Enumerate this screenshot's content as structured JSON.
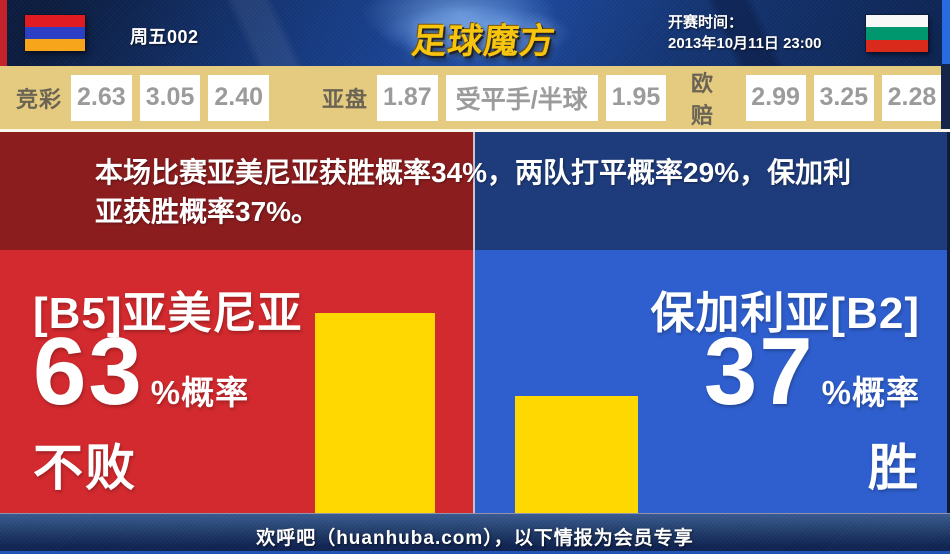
{
  "header": {
    "match_label": "周五002",
    "logo_text": "足球魔方",
    "kickoff_label": "开赛时间：",
    "kickoff_time": "2013年10月11日 23:00",
    "home_flag": "armenia-flag",
    "away_flag": "bulgaria-flag"
  },
  "odds": {
    "jingcai": {
      "label": "竞彩",
      "values": [
        "2.63",
        "3.05",
        "2.40"
      ]
    },
    "yapan": {
      "label": "亚盘",
      "values": [
        "1.87",
        "受平手/半球",
        "1.95"
      ]
    },
    "oupei": {
      "label": "欧赔",
      "values": [
        "2.99",
        "3.25",
        "2.28"
      ]
    }
  },
  "banner": {
    "text": "本场比赛亚美尼亚获胜概率34%，两队打平概率29%，保加利亚获胜概率37%。",
    "home_win_pct": 34,
    "draw_pct": 29,
    "away_win_pct": 37
  },
  "panels": {
    "left": {
      "team": "[B5]亚美尼亚",
      "percent": "63",
      "percent_value": 63,
      "suffix": "%概率",
      "outcome": "不败"
    },
    "right": {
      "team": "保加利亚[B2]",
      "percent": "37",
      "percent_value": 37,
      "suffix": "%概率",
      "outcome": "胜"
    }
  },
  "footer": {
    "text": "欢呼吧（huanhuba.com），以下情报为会员专享"
  },
  "colors": {
    "panel_red": "#d22a2e",
    "panel_blue": "#2f5fce",
    "banner_dark_red": "#8b1d1f",
    "banner_dark_blue": "#1e3c7c",
    "bar_yellow": "#fed800",
    "odds_bg_tan": "#e5cb80",
    "logo_gold": "#f7c40e",
    "armenia_flag_stripes": [
      "#e01b22",
      "#2b3fc4",
      "#f7a61b"
    ],
    "bulgaria_flag_stripes": [
      "#f8f8f8",
      "#00966e",
      "#d92a1b"
    ]
  }
}
